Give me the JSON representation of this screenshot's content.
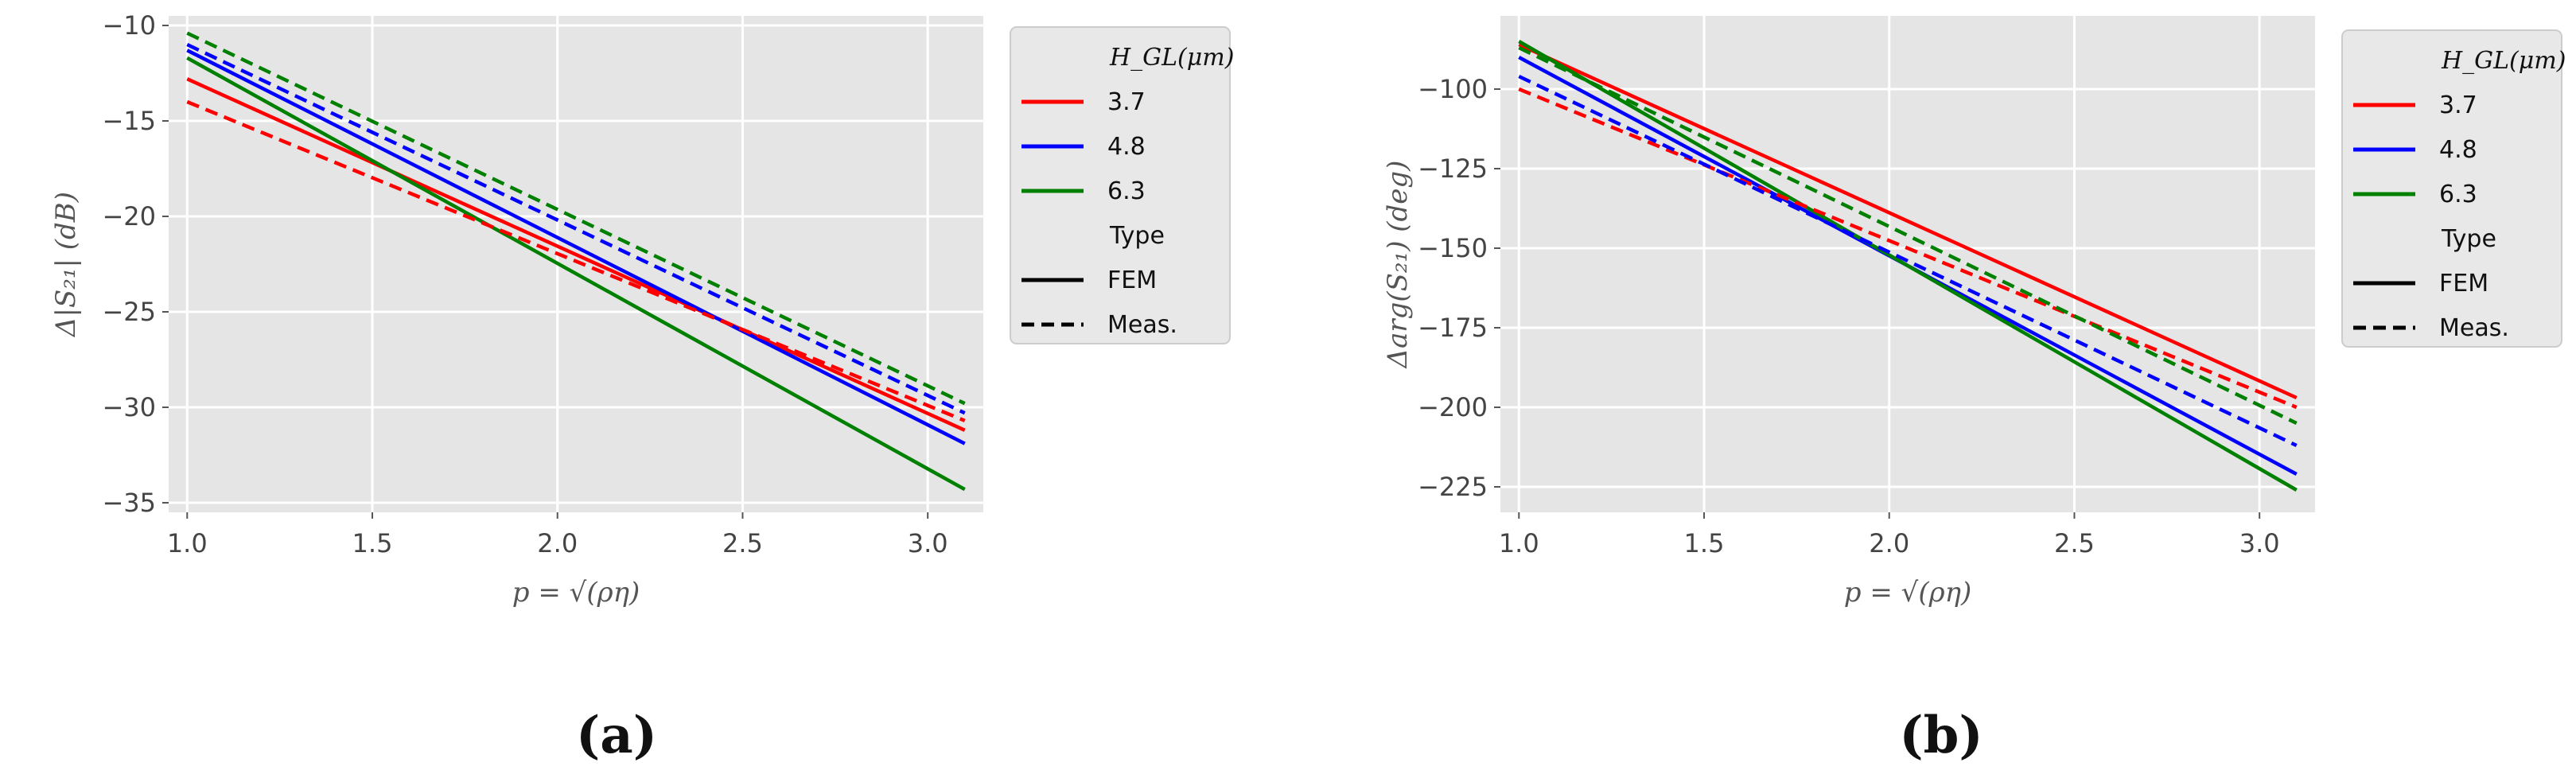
{
  "chart_data": [
    {
      "type": "line",
      "panel_label": "(a)",
      "xlabel": "p = √(ρη)",
      "ylabel": "Δ|S₂₁| (dB)",
      "xlim": [
        0.95,
        3.15
      ],
      "ylim": [
        -35.5,
        -9.5
      ],
      "xticks": [
        1.0,
        1.5,
        2.0,
        2.5,
        3.0
      ],
      "yticks": [
        -10,
        -15,
        -20,
        -25,
        -30,
        -35
      ],
      "grid": true,
      "legend": {
        "placement": "outside-right",
        "title": "H_GL(μm)",
        "entries": [
          "3.7",
          "4.8",
          "6.3"
        ],
        "type_title": "Type",
        "types": [
          "FEM",
          "Meas."
        ]
      },
      "series": [
        {
          "name": "3.7",
          "type": "FEM",
          "color": "#ff0000",
          "dash": false,
          "x": [
            1.0,
            3.1
          ],
          "y": [
            -12.8,
            -31.2
          ]
        },
        {
          "name": "4.8",
          "type": "FEM",
          "color": "#0000ff",
          "dash": false,
          "x": [
            1.0,
            3.1
          ],
          "y": [
            -11.3,
            -31.9
          ]
        },
        {
          "name": "6.3",
          "type": "FEM",
          "color": "#008000",
          "dash": false,
          "x": [
            1.0,
            3.1
          ],
          "y": [
            -11.7,
            -34.3
          ]
        },
        {
          "name": "3.7",
          "type": "Meas.",
          "color": "#ff0000",
          "dash": true,
          "x": [
            1.0,
            3.1
          ],
          "y": [
            -14.0,
            -30.7
          ]
        },
        {
          "name": "4.8",
          "type": "Meas.",
          "color": "#0000ff",
          "dash": true,
          "x": [
            1.0,
            3.1
          ],
          "y": [
            -11.0,
            -30.3
          ]
        },
        {
          "name": "6.3",
          "type": "Meas.",
          "color": "#008000",
          "dash": true,
          "x": [
            1.0,
            3.1
          ],
          "y": [
            -10.4,
            -29.8
          ]
        }
      ]
    },
    {
      "type": "line",
      "panel_label": "(b)",
      "xlabel": "p = √(ρη)",
      "ylabel": "Δarg(S₂₁) (deg)",
      "xlim": [
        0.95,
        3.15
      ],
      "ylim": [
        -233,
        -77
      ],
      "xticks": [
        1.0,
        1.5,
        2.0,
        2.5,
        3.0
      ],
      "yticks": [
        -100,
        -125,
        -150,
        -175,
        -200,
        -225
      ],
      "grid": true,
      "legend": {
        "placement": "outside-right",
        "title": "H_GL(μm)",
        "entries": [
          "3.7",
          "4.8",
          "6.3"
        ],
        "type_title": "Type",
        "types": [
          "FEM",
          "Meas."
        ]
      },
      "series": [
        {
          "name": "3.7",
          "type": "FEM",
          "color": "#ff0000",
          "dash": false,
          "x": [
            1.0,
            3.1
          ],
          "y": [
            -86,
            -197
          ]
        },
        {
          "name": "4.8",
          "type": "FEM",
          "color": "#0000ff",
          "dash": false,
          "x": [
            1.0,
            3.1
          ],
          "y": [
            -90,
            -221
          ]
        },
        {
          "name": "6.3",
          "type": "FEM",
          "color": "#008000",
          "dash": false,
          "x": [
            1.0,
            3.1
          ],
          "y": [
            -85,
            -226
          ]
        },
        {
          "name": "3.7",
          "type": "Meas.",
          "color": "#ff0000",
          "dash": true,
          "x": [
            1.0,
            3.1
          ],
          "y": [
            -100,
            -200
          ]
        },
        {
          "name": "4.8",
          "type": "Meas.",
          "color": "#0000ff",
          "dash": true,
          "x": [
            1.0,
            3.1
          ],
          "y": [
            -96,
            -212
          ]
        },
        {
          "name": "6.3",
          "type": "Meas.",
          "color": "#008000",
          "dash": true,
          "x": [
            1.0,
            3.1
          ],
          "y": [
            -87,
            -205
          ]
        }
      ]
    }
  ]
}
